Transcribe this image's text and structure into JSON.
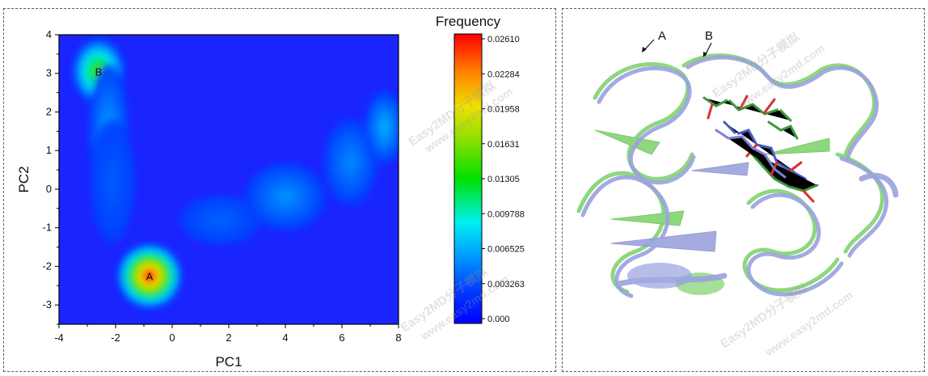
{
  "chart_data": {
    "type": "heatmap",
    "title": "",
    "xlabel": "PC1",
    "ylabel": "PC2",
    "xlim": [
      -4,
      8
    ],
    "ylim": [
      -3.5,
      4
    ],
    "x_ticks": [
      -4,
      -2,
      0,
      2,
      4,
      6,
      8
    ],
    "y_ticks": [
      -3,
      -2,
      -1,
      0,
      1,
      2,
      3,
      4
    ],
    "colorbar": {
      "title": "Frequency",
      "ticks": [
        "0.000",
        "0.003263",
        "0.006525",
        "0.009788",
        "0.01305",
        "0.01631",
        "0.01958",
        "0.02284",
        "0.02610"
      ],
      "min": 0,
      "max": 0.0261
    },
    "density_peaks": [
      {
        "label": "A",
        "x": -0.8,
        "y": -2.25,
        "frequency": 0.0261
      },
      {
        "label": "B",
        "x": -2.6,
        "y": 3.05,
        "frequency": 0.0155
      },
      {
        "label": "",
        "x": -2.25,
        "y": 1.5,
        "frequency": 0.0062
      },
      {
        "label": "",
        "x": -2.1,
        "y": 0.2,
        "frequency": 0.004
      },
      {
        "label": "",
        "x": 1.7,
        "y": -0.8,
        "frequency": 0.0042
      },
      {
        "label": "",
        "x": 4.0,
        "y": -0.2,
        "frequency": 0.0058
      },
      {
        "label": "",
        "x": 6.3,
        "y": 0.7,
        "frequency": 0.0055
      },
      {
        "label": "",
        "x": 7.5,
        "y": 1.6,
        "frequency": 0.0068
      }
    ]
  },
  "structure_panel": {
    "labels": [
      "A",
      "B"
    ],
    "colors": {
      "A": "#9aa2de",
      "B": "#8ed77f"
    }
  },
  "watermark": {
    "brand": "Easy2MD分子模拟",
    "url": "www.easy2md.com"
  }
}
